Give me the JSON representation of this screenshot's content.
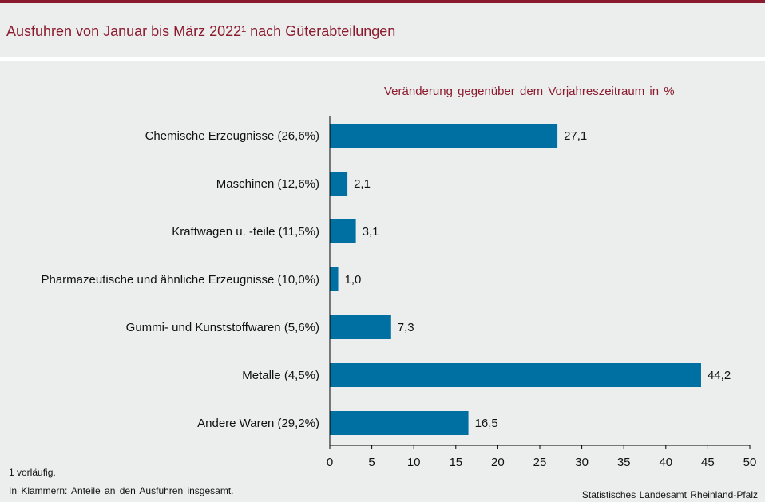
{
  "title": "Ausfuhren von Januar bis März 2022¹ nach Güterabteilungen",
  "subtitle": "Veränderung gegenüber dem Vorjahreszeitraum in %",
  "footnotes": {
    "note1": "1 vorläufig.",
    "note2": "In Klammern: Anteile an den Ausfuhren insgesamt."
  },
  "source": "Statistisches Landesamt Rheinland-Pfalz",
  "colors": {
    "accent": "#8b1a2e",
    "bar": "#0070a3",
    "background": "#eceeed"
  },
  "chart_data": {
    "type": "bar",
    "orientation": "horizontal",
    "categories": [
      "Chemische Erzeugnisse (26,6%)",
      "Maschinen (12,6%)",
      "Kraftwagen u. -teile (11,5%)",
      "Pharmazeutische und ähnliche Erzeugnisse (10,0%)",
      "Gummi- und Kunststoffwaren (5,6%)",
      "Metalle (4,5%)",
      "Andere Waren (29,2%)"
    ],
    "values": [
      27.1,
      2.1,
      3.1,
      1.0,
      7.3,
      44.2,
      16.5
    ],
    "value_labels": [
      "27,1",
      "2,1",
      "3,1",
      "1,0",
      "7,3",
      "44,2",
      "16,5"
    ],
    "xlim": [
      0,
      50
    ],
    "xticks": [
      0,
      5,
      10,
      15,
      20,
      25,
      30,
      35,
      40,
      45,
      50
    ],
    "grid": false,
    "legend": "none"
  }
}
